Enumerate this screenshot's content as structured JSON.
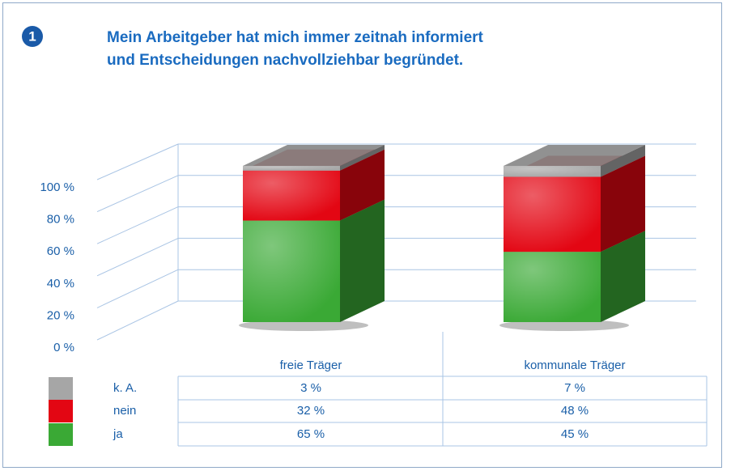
{
  "badge": "1",
  "chart_data": {
    "type": "bar3d_stacked",
    "title": [
      "Mein Arbeitgeber hat mich immer zeitnah informiert",
      "und Entscheidungen nachvollziehbar begründet."
    ],
    "categories": [
      "freie Träger",
      "kommunale Träger"
    ],
    "series": [
      {
        "name": "k. A.",
        "color": "#a6a6a6",
        "values": [
          3,
          7
        ],
        "value_labels": [
          "3 %",
          "7 %"
        ]
      },
      {
        "name": "nein",
        "color": "#e30613",
        "values": [
          32,
          48
        ],
        "value_labels": [
          "32 %",
          "48 %"
        ]
      },
      {
        "name": "ja",
        "color": "#3aa935",
        "values": [
          65,
          45
        ],
        "value_labels": [
          "65 %",
          "45 %"
        ]
      }
    ],
    "ylim": [
      0,
      100
    ],
    "yticks": [
      {
        "value": 0,
        "label": "0 %"
      },
      {
        "value": 20,
        "label": "20 %"
      },
      {
        "value": 40,
        "label": "40 %"
      },
      {
        "value": 60,
        "label": "60 %"
      },
      {
        "value": 80,
        "label": "80 %"
      },
      {
        "value": 100,
        "label": "100 %"
      }
    ],
    "grid": true
  }
}
